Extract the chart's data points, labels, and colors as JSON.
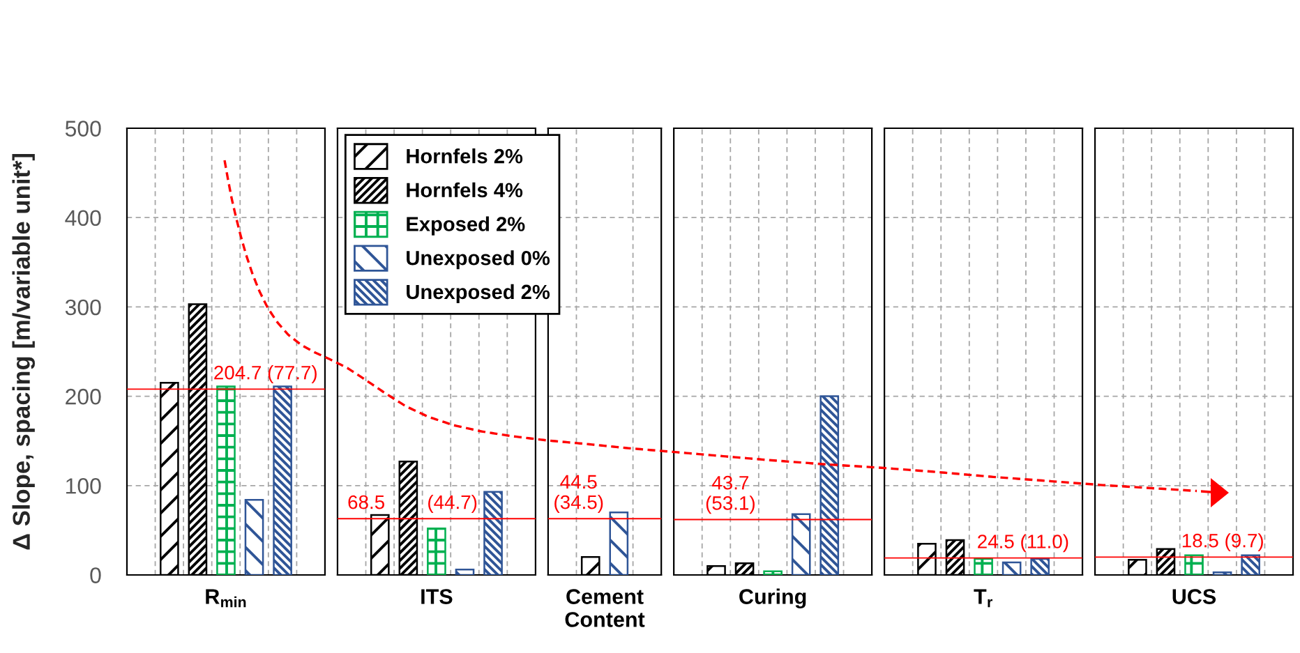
{
  "chart_data": [
    {
      "type": "bar",
      "categories": [
        "R$_{min}$"
      ],
      "ylabel": "Δ Slope, spacing [m/variable unit*]",
      "ylim": [
        0,
        500
      ],
      "yticks": [
        0,
        100,
        200,
        300,
        400,
        500
      ],
      "grid": true,
      "series": [
        {
          "color": "#000000",
          "values": [
            215
          ]
        },
        {
          "color": "#000000",
          "values": [
            303
          ]
        },
        {
          "color": "#00b050",
          "values": [
            211
          ]
        },
        {
          "color": "#2f5597",
          "values": [
            84
          ]
        },
        {
          "color": "#2f5597",
          "values": [
            211
          ]
        }
      ],
      "ref_lines": [
        {
          "axis": "y",
          "value": 208,
          "color": "#ff0000"
        }
      ],
      "annotations": [
        "204.7 (77.7)"
      ]
    },
    {
      "type": "bar",
      "categories": [
        "ITS"
      ],
      "ylim": [
        0,
        500
      ],
      "yticks": [
        0,
        100,
        200,
        300,
        400,
        500
      ],
      "grid": true,
      "tick_labels": "x",
      "legend": "top",
      "series": [
        {
          "name": "Hornfels 2%",
          "color": "#000000",
          "values": [
            67
          ]
        },
        {
          "name": "Hornfels 4%",
          "color": "#000000",
          "values": [
            127
          ]
        },
        {
          "name": "Exposed 2%",
          "color": "#00b050",
          "values": [
            52
          ]
        },
        {
          "name": "Unexposed 0%",
          "color": "#2f5597",
          "values": [
            6
          ]
        },
        {
          "name": "Unexposed 2%",
          "color": "#2f5597",
          "values": [
            93
          ]
        }
      ],
      "ref_lines": [
        {
          "axis": "y",
          "value": 63,
          "color": "#ff0000"
        }
      ],
      "annotations": [
        "68.5",
        "(44.7)"
      ]
    },
    {
      "type": "bar",
      "categories": [
        "Cement\nContent"
      ],
      "ylim": [
        0,
        500
      ],
      "yticks": [
        0,
        100,
        200,
        300,
        400,
        500
      ],
      "grid": true,
      "tick_labels": "x",
      "series": [
        {
          "color": "#000000",
          "values": [
            20
          ]
        },
        {
          "values": [
            null
          ]
        },
        {
          "values": [
            null
          ]
        },
        {
          "color": "#2f5597",
          "values": [
            70
          ]
        },
        {
          "values": [
            null
          ]
        }
      ],
      "ref_lines": [
        {
          "axis": "y",
          "value": 63,
          "color": "#ff0000"
        }
      ],
      "annotations": [
        "44.5",
        "(34.5)"
      ]
    },
    {
      "type": "bar",
      "categories": [
        "Curing"
      ],
      "ylim": [
        0,
        500
      ],
      "yticks": [
        0,
        100,
        200,
        300,
        400,
        500
      ],
      "grid": true,
      "tick_labels": "x",
      "series": [
        {
          "color": "#000000",
          "values": [
            10
          ]
        },
        {
          "color": "#000000",
          "values": [
            13
          ]
        },
        {
          "color": "#00b050",
          "values": [
            4
          ]
        },
        {
          "color": "#2f5597",
          "values": [
            68
          ]
        },
        {
          "color": "#2f5597",
          "values": [
            200
          ]
        }
      ],
      "ref_lines": [
        {
          "axis": "y",
          "value": 62,
          "color": "#ff0000"
        }
      ],
      "annotations": [
        "43.7",
        "(53.1)"
      ]
    },
    {
      "type": "bar",
      "categories": [
        "T$_{r}$"
      ],
      "ylim": [
        0,
        500
      ],
      "yticks": [
        0,
        100,
        200,
        300,
        400,
        500
      ],
      "grid": true,
      "tick_labels": "x",
      "series": [
        {
          "color": "#000000",
          "values": [
            35
          ]
        },
        {
          "color": "#000000",
          "values": [
            39
          ]
        },
        {
          "color": "#00b050",
          "values": [
            18
          ]
        },
        {
          "color": "#2f5597",
          "values": [
            14
          ]
        },
        {
          "color": "#2f5597",
          "values": [
            18
          ]
        }
      ],
      "ref_lines": [
        {
          "axis": "y",
          "value": 19,
          "color": "#ff0000"
        }
      ],
      "annotations": [
        "24.5 (11.0)"
      ]
    },
    {
      "type": "bar",
      "categories": [
        "UCS"
      ],
      "ylim": [
        0,
        500
      ],
      "yticks": [
        0,
        100,
        200,
        300,
        400,
        500
      ],
      "grid": true,
      "tick_labels": "x",
      "series": [
        {
          "color": "#000000",
          "values": [
            17
          ]
        },
        {
          "color": "#000000",
          "values": [
            29
          ]
        },
        {
          "color": "#00b050",
          "values": [
            22
          ]
        },
        {
          "color": "#2f5597",
          "values": [
            3
          ]
        },
        {
          "color": "#2f5597",
          "values": [
            22
          ]
        }
      ],
      "ref_lines": [
        {
          "axis": "y",
          "value": 20,
          "color": "#ff0000"
        }
      ],
      "annotations": [
        "18.5 (9.7)"
      ]
    }
  ]
}
